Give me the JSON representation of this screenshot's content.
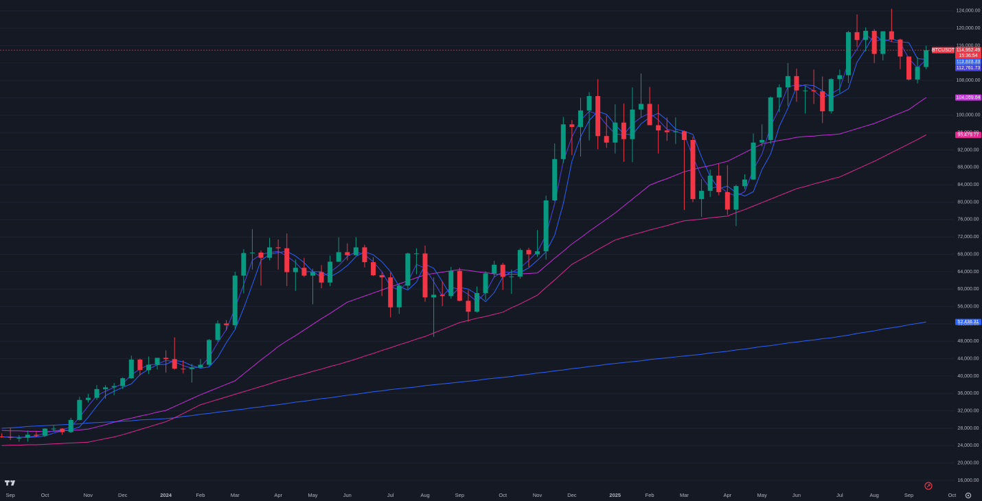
{
  "chart_data": {
    "type": "candlestick",
    "symbol": "BTCUSDT",
    "countdown": "15:36:54",
    "close_label": "114,952.49",
    "up_color": "#089981",
    "down_color": "#f23645",
    "price_line_color": "#f23645",
    "grid": true,
    "categories": [
      null,
      "Sep",
      null,
      null,
      null,
      "Oct",
      null,
      null,
      null,
      null,
      "Nov",
      null,
      null,
      null,
      "Dec",
      null,
      null,
      null,
      null,
      "2024",
      null,
      null,
      null,
      "Feb",
      null,
      null,
      null,
      "Mar",
      null,
      null,
      null,
      null,
      "Apr",
      null,
      null,
      null,
      "May",
      null,
      null,
      null,
      "Jun",
      null,
      null,
      null,
      null,
      "Jul",
      null,
      null,
      null,
      "Aug",
      null,
      null,
      null,
      "Sep",
      null,
      null,
      null,
      null,
      "Oct",
      null,
      null,
      null,
      "Nov",
      null,
      null,
      null,
      "Dec",
      null,
      null,
      null,
      null,
      "2025",
      null,
      null,
      null,
      "Feb",
      null,
      null,
      null,
      "Mar",
      null,
      null,
      null,
      null,
      "Apr",
      null,
      null,
      null,
      "May",
      null,
      null,
      null,
      "Jun",
      null,
      null,
      null,
      null,
      "Jul",
      null,
      null,
      null,
      "Aug",
      null,
      null,
      null,
      "Sep",
      null,
      null,
      null,
      null,
      "Oct"
    ],
    "open": [
      26100,
      26000,
      25800,
      25800,
      26500,
      26300,
      27900,
      27900,
      27100,
      29900,
      34500,
      35000,
      37000,
      37400,
      37700,
      39500,
      43800,
      41400,
      42600,
      44200,
      43900,
      41700,
      41600,
      42000,
      42600,
      48300,
      52100,
      51700,
      63100,
      68300,
      68400,
      67200,
      69600,
      69400,
      63900,
      64900,
      63100,
      63900,
      61500,
      66300,
      68500,
      67800,
      69600,
      66200,
      63200,
      62700,
      55800,
      60800,
      68200,
      68200,
      58100,
      58700,
      58400,
      64200,
      57300,
      54800,
      59100,
      63600,
      65600,
      62800,
      62900,
      69000,
      68000,
      68700,
      80400,
      89900,
      97900,
      97300,
      101100,
      104400,
      95200,
      93700,
      98300,
      94500,
      101300,
      102600,
      97700,
      96500,
      96100,
      96300,
      94300,
      80700,
      82600,
      86100,
      82300,
      78300,
      83700,
      85200,
      93700,
      94300,
      104100,
      106400,
      109000,
      105700,
      105700,
      105500,
      100900,
      108300,
      109200,
      119100,
      117300,
      119400,
      114100,
      119300,
      117400,
      113500,
      108200,
      111100,
      null,
      null,
      null
    ],
    "high": [
      26800,
      28100,
      26400,
      27500,
      27400,
      28000,
      28600,
      28000,
      30400,
      35200,
      35900,
      37900,
      37900,
      38400,
      39700,
      44700,
      44000,
      44500,
      43800,
      45900,
      48900,
      43600,
      42800,
      43900,
      48500,
      52800,
      52900,
      64000,
      69200,
      73800,
      68900,
      71800,
      71400,
      72800,
      66800,
      67200,
      64700,
      65500,
      67700,
      71900,
      70500,
      72000,
      70200,
      67300,
      63800,
      63800,
      61400,
      68400,
      69400,
      70000,
      62700,
      61800,
      65100,
      64900,
      59800,
      60600,
      64100,
      66500,
      66000,
      64500,
      69400,
      69500,
      73600,
      81500,
      93500,
      99600,
      98900,
      104000,
      105300,
      108300,
      99900,
      102500,
      102700,
      106400,
      109600,
      106500,
      102500,
      99500,
      99500,
      96500,
      95000,
      85300,
      87500,
      88800,
      88500,
      84000,
      86400,
      95800,
      97900,
      104300,
      107100,
      112000,
      110700,
      106800,
      110500,
      108900,
      108500,
      110500,
      119400,
      123200,
      120200,
      119800,
      119300,
      124500,
      117600,
      113500,
      113400,
      116000,
      null,
      null,
      null
    ],
    "low": [
      25800,
      25300,
      24900,
      24900,
      26000,
      26000,
      27200,
      26500,
      26900,
      29800,
      33900,
      34500,
      34800,
      35600,
      37000,
      39400,
      40200,
      40500,
      41500,
      40800,
      41500,
      40600,
      38500,
      41800,
      42300,
      47900,
      50500,
      50900,
      59000,
      64500,
      60800,
      66600,
      64500,
      60700,
      59600,
      62800,
      56500,
      60200,
      60700,
      66300,
      66600,
      67700,
      65000,
      63000,
      58400,
      53500,
      54300,
      60000,
      63400,
      57100,
      49000,
      56100,
      57800,
      57200,
      52500,
      54600,
      57500,
      62700,
      59800,
      58900,
      62400,
      65100,
      67400,
      66800,
      80200,
      89000,
      90800,
      90500,
      94200,
      92200,
      92500,
      91200,
      89300,
      89200,
      99500,
      97700,
      91200,
      94100,
      93400,
      78200,
      80000,
      76600,
      81200,
      81600,
      77100,
      74500,
      83000,
      85100,
      92800,
      93400,
      100700,
      102100,
      103100,
      100400,
      102600,
      98200,
      100400,
      105100,
      107400,
      115700,
      114700,
      112000,
      112600,
      116800,
      110600,
      108000,
      107300,
      110600,
      null,
      null,
      null
    ],
    "close": [
      26000,
      25800,
      25800,
      26500,
      26300,
      27900,
      27900,
      27100,
      29900,
      34500,
      35000,
      37000,
      37400,
      37700,
      39500,
      43800,
      41400,
      42600,
      44200,
      43900,
      41700,
      41600,
      42000,
      42600,
      48300,
      52100,
      51700,
      63100,
      68300,
      68400,
      67200,
      69600,
      69400,
      63900,
      64900,
      63100,
      63900,
      61500,
      66300,
      68500,
      67800,
      69600,
      66200,
      63200,
      62700,
      55800,
      60800,
      68200,
      68200,
      58100,
      58700,
      58400,
      64200,
      57300,
      54800,
      59100,
      63600,
      65600,
      62800,
      62900,
      69000,
      68000,
      68700,
      80400,
      89900,
      97900,
      97300,
      101100,
      104400,
      95200,
      93700,
      98300,
      94500,
      101300,
      102600,
      97700,
      96500,
      96100,
      96300,
      94300,
      80700,
      82600,
      86100,
      82300,
      78300,
      83700,
      85200,
      93700,
      94300,
      104100,
      106400,
      109000,
      105700,
      105700,
      105500,
      100900,
      108300,
      109200,
      119100,
      117300,
      119400,
      114100,
      119300,
      117400,
      113500,
      108200,
      111100,
      114952.49,
      null,
      null,
      null
    ],
    "series": [
      {
        "color": "#2962ff",
        "last_label": "52,436.31",
        "values": [
          28000,
          28100,
          28200,
          28400,
          28500,
          28600,
          28700,
          28800,
          28900,
          29000,
          29200,
          29300,
          29400,
          29500,
          29600,
          29700,
          29900,
          30000,
          30100,
          30200,
          30400,
          30700,
          30900,
          31200,
          31400,
          31700,
          31900,
          32200,
          32400,
          32700,
          32900,
          33200,
          33400,
          33700,
          34000,
          34200,
          34500,
          34800,
          35000,
          35300,
          35600,
          35800,
          36100,
          36400,
          36600,
          36900,
          37100,
          37300,
          37500,
          37800,
          38000,
          38200,
          38400,
          38600,
          38800,
          39000,
          39300,
          39500,
          39700,
          39900,
          40200,
          40400,
          40700,
          40900,
          41200,
          41400,
          41700,
          41900,
          42200,
          42400,
          42700,
          42900,
          43100,
          43300,
          43500,
          43800,
          44000,
          44200,
          44400,
          44600,
          44800,
          45000,
          45300,
          45500,
          45700,
          46000,
          46200,
          46500,
          46800,
          47000,
          47300,
          47600,
          47800,
          48100,
          48300,
          48600,
          48800,
          49100,
          49400,
          49800,
          50100,
          50400,
          50800,
          51100,
          51400,
          51800,
          52100,
          52436.31,
          null,
          null,
          null
        ]
      },
      {
        "color": "#e0288f",
        "last_label": "95,479.77",
        "values": [
          24000,
          24100,
          24100,
          24200,
          24200,
          24300,
          24400,
          24500,
          24600,
          24700,
          24800,
          25200,
          25600,
          26000,
          26500,
          27100,
          27700,
          28300,
          28900,
          29500,
          30400,
          31400,
          32400,
          33400,
          34000,
          34600,
          35200,
          35800,
          36400,
          37000,
          37600,
          38200,
          38900,
          39400,
          40000,
          40500,
          41100,
          41600,
          42200,
          42700,
          43300,
          43900,
          44600,
          45200,
          45900,
          46500,
          47200,
          47800,
          48500,
          49100,
          49900,
          50700,
          51500,
          52300,
          52800,
          53300,
          53700,
          54200,
          54700,
          55700,
          56600,
          57600,
          58600,
          60400,
          62100,
          63900,
          65700,
          66800,
          67900,
          69100,
          70200,
          71300,
          71900,
          72500,
          73000,
          73600,
          74100,
          74600,
          75200,
          75700,
          75900,
          76100,
          76400,
          76600,
          76800,
          77600,
          78300,
          79100,
          79900,
          80700,
          81500,
          82300,
          83100,
          83600,
          84200,
          84700,
          85300,
          85800,
          86700,
          87600,
          88500,
          89400,
          90400,
          91400,
          92400,
          93400,
          94400,
          95479.77,
          null,
          null,
          null
        ]
      },
      {
        "color": "#c72fdc",
        "last_label": "104,059.64",
        "values": [
          27500,
          27400,
          27400,
          27300,
          27300,
          27200,
          27300,
          27400,
          27500,
          27600,
          27800,
          28300,
          28800,
          29400,
          29900,
          30300,
          30800,
          31200,
          31700,
          32100,
          33000,
          33900,
          34800,
          35700,
          36500,
          37300,
          38100,
          38900,
          40500,
          42100,
          43700,
          45200,
          46800,
          48100,
          49300,
          50600,
          51900,
          53200,
          54400,
          55700,
          57000,
          57700,
          58400,
          59100,
          59800,
          60500,
          61200,
          61900,
          62600,
          63300,
          63600,
          63900,
          64200,
          64500,
          64300,
          64000,
          63800,
          63500,
          63300,
          63400,
          63500,
          63600,
          63700,
          65400,
          67100,
          68700,
          70400,
          71800,
          73300,
          74700,
          76100,
          77500,
          79100,
          80700,
          82300,
          83900,
          84700,
          85400,
          86200,
          87000,
          87500,
          88000,
          88400,
          88900,
          89400,
          90400,
          91400,
          92400,
          93400,
          93800,
          94200,
          94500,
          94900,
          95100,
          95200,
          95400,
          95500,
          95700,
          96300,
          96900,
          97500,
          98100,
          98900,
          99700,
          100500,
          101300,
          102700,
          104059.64,
          null,
          null,
          null
        ]
      },
      {
        "color": "#2962ff",
        "last_label": "112,873.73",
        "values": [
          26000,
          26000,
          25900,
          25900,
          26000,
          26200,
          26900,
          27400,
          27600,
          28300,
          30500,
          33100,
          35500,
          36500,
          37400,
          38200,
          40300,
          41600,
          42600,
          42700,
          43600,
          43300,
          42400,
          41800,
          42100,
          44300,
          47700,
          50700,
          55600,
          61000,
          66600,
          68000,
          68400,
          68700,
          67600,
          66100,
          64000,
          64000,
          62800,
          63900,
          65400,
          67500,
          68600,
          67900,
          66300,
          64000,
          60600,
          59800,
          61600,
          65700,
          64800,
          61700,
          58400,
          60400,
          60000,
          58800,
          57100,
          59200,
          62800,
          64000,
          63800,
          64900,
          66600,
          68600,
          72400,
          79700,
          89400,
          95000,
          98800,
          100900,
          100200,
          97800,
          95700,
          95500,
          98000,
          99500,
          100500,
          98900,
          96800,
          96300,
          95600,
          90400,
          85900,
          83100,
          83700,
          82200,
          81400,
          82400,
          87500,
          91100,
          97400,
          101600,
          106500,
          107000,
          106800,
          105600,
          104000,
          104900,
          106100,
          112200,
          115200,
          118600,
          116900,
          117600,
          116900,
          116700,
          113000,
          112873.73,
          null,
          null,
          null
        ]
      },
      {
        "color": "#4c44e0",
        "last_label": "112,761.73",
        "values": [
          26000,
          25900,
          25900,
          26000,
          26200,
          26900,
          27400,
          27600,
          28300,
          30500,
          33100,
          35500,
          36500,
          37400,
          38200,
          40300,
          41600,
          42600,
          42700,
          43600,
          43300,
          42400,
          41800,
          42100,
          44300,
          47700,
          50700,
          55600,
          61000,
          66600,
          68000,
          68400,
          68700,
          67600,
          66100,
          64000,
          64000,
          62800,
          63900,
          65400,
          67500,
          68600,
          67900,
          66300,
          64000,
          60600,
          59800,
          61600,
          65700,
          64800,
          61700,
          58400,
          60400,
          60000,
          58800,
          57100,
          59200,
          62800,
          64000,
          63800,
          64900,
          66600,
          68600,
          72400,
          79700,
          89400,
          95000,
          98800,
          100900,
          100200,
          97800,
          95700,
          95500,
          98000,
          99500,
          100500,
          98900,
          96800,
          96300,
          95600,
          90400,
          85900,
          83100,
          83700,
          82200,
          81400,
          82400,
          87500,
          91100,
          97400,
          101600,
          106500,
          107000,
          106800,
          105600,
          104000,
          104900,
          106100,
          112200,
          115200,
          118600,
          116900,
          117600,
          116900,
          116700,
          113000,
          110900,
          112761.73,
          null,
          null,
          null
        ]
      }
    ],
    "ylim": [
      14100,
      126500
    ],
    "yticks": [
      {
        "value": 16000,
        "label": "16,000.00"
      },
      {
        "value": 20000,
        "label": "20,000.00"
      },
      {
        "value": 24000,
        "label": "24,000.00"
      },
      {
        "value": 28000,
        "label": "28,000.00"
      },
      {
        "value": 32000,
        "label": "32,000.00"
      },
      {
        "value": 36000,
        "label": "36,000.00"
      },
      {
        "value": 40000,
        "label": "40,000.00"
      },
      {
        "value": 44000,
        "label": "44,000.00"
      },
      {
        "value": 48000,
        "label": "48,000.00"
      },
      {
        "value": 52000,
        "label": "52,000.00"
      },
      {
        "value": 56000,
        "label": "56,000.00"
      },
      {
        "value": 60000,
        "label": "60,000.00"
      },
      {
        "value": 64000,
        "label": "64,000.00"
      },
      {
        "value": 68000,
        "label": "68,000.00"
      },
      {
        "value": 72000,
        "label": "72,000.00"
      },
      {
        "value": 76000,
        "label": "76,000.00"
      },
      {
        "value": 80000,
        "label": "80,000.00"
      },
      {
        "value": 84000,
        "label": "84,000.00"
      },
      {
        "value": 88000,
        "label": "88,000.00"
      },
      {
        "value": 92000,
        "label": "92,000.00"
      },
      {
        "value": 96000,
        "label": "96,000.00"
      },
      {
        "value": 100000,
        "label": "100,000.00"
      },
      {
        "value": 104000,
        "label": "104,000.00"
      },
      {
        "value": 108000,
        "label": "108,000.00"
      },
      {
        "value": 112000,
        "label": "112,000.00"
      },
      {
        "value": 116000,
        "label": "116,000.00"
      },
      {
        "value": 120000,
        "label": "120,000.00"
      },
      {
        "value": 124000,
        "label": "124,000.00"
      }
    ]
  }
}
